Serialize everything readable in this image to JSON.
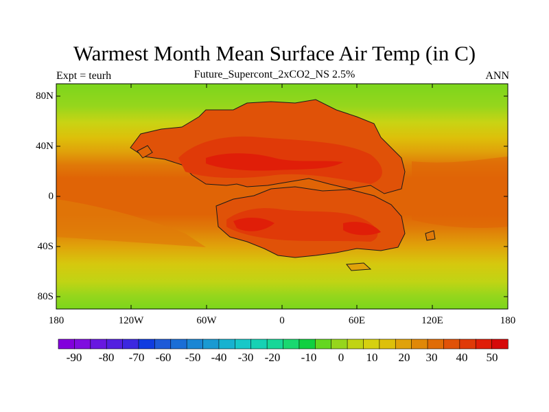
{
  "title": "Warmest Month Mean Surface Air Temp (in C)",
  "subtitle": "Future_Supercont_2xCO2_NS 2.5%",
  "left_string": "Expt = teurh",
  "right_string": "ANN",
  "y_axis": {
    "ticks": [
      {
        "label": "80N",
        "lat": 80
      },
      {
        "label": "40N",
        "lat": 40
      },
      {
        "label": "0",
        "lat": 0
      },
      {
        "label": "40S",
        "lat": -40
      },
      {
        "label": "80S",
        "lat": -80
      }
    ],
    "range": [
      -90,
      90
    ]
  },
  "x_axis": {
    "ticks": [
      {
        "label": "180",
        "lon": -180
      },
      {
        "label": "120W",
        "lon": -120
      },
      {
        "label": "60W",
        "lon": -60
      },
      {
        "label": "0",
        "lon": 0
      },
      {
        "label": "60E",
        "lon": 60
      },
      {
        "label": "120E",
        "lon": 120
      },
      {
        "label": "180",
        "lon": 180
      }
    ],
    "range": [
      -180,
      180
    ]
  },
  "colorbar": {
    "labels": [
      "-90",
      "-80",
      "-70",
      "-60",
      "-50",
      "-40",
      "-30",
      "-20",
      "-10",
      "0",
      "10",
      "20",
      "30",
      "40",
      "50"
    ],
    "colors": [
      "#8200dc",
      "#7f0ddf",
      "#6818e0",
      "#5320e0",
      "#3c28e0",
      "#0f3ce0",
      "#1e5ad8",
      "#1a6ed6",
      "#1a86d4",
      "#1a9ad2",
      "#18b2d0",
      "#18c8c8",
      "#16d2b4",
      "#18d798",
      "#1ad870",
      "#10d040",
      "#64d620",
      "#96d61c",
      "#c0d414",
      "#d6d010",
      "#ddc00a",
      "#e0a20a",
      "#e08808",
      "#e06c06",
      "#e05208",
      "#e03a08",
      "#e01e08",
      "#d60a0a"
    ]
  }
}
